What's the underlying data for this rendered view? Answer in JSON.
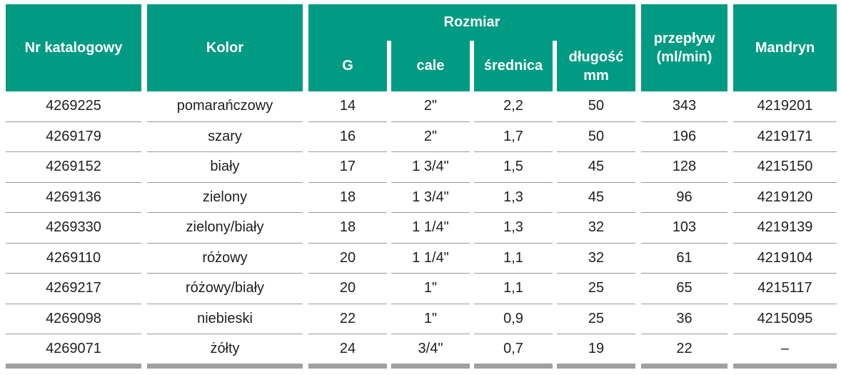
{
  "header": {
    "col_nr": "Nr katalogowy",
    "col_kolor": "Kolor",
    "group_rozmiar": "Rozmiar",
    "sub_g": "G",
    "sub_cale": "cale",
    "sub_srednica": "średnica",
    "sub_dlugosc_line1": "długość",
    "sub_dlugosc_line2": "mm",
    "col_przeplyw_line1": "przepływ",
    "col_przeplyw_line2": "(ml/min)",
    "col_mandryn": "Mandryn"
  },
  "rows": [
    {
      "nr": "4269225",
      "kolor": "pomarańczowy",
      "g": "14",
      "cale": "2\"",
      "srednica": "2,2",
      "dlugosc": "50",
      "przeplyw": "343",
      "mandryn": "4219201"
    },
    {
      "nr": "4269179",
      "kolor": "szary",
      "g": "16",
      "cale": "2\"",
      "srednica": "1,7",
      "dlugosc": "50",
      "przeplyw": "196",
      "mandryn": "4219171"
    },
    {
      "nr": "4269152",
      "kolor": "biały",
      "g": "17",
      "cale": "1 3/4\"",
      "srednica": "1,5",
      "dlugosc": "45",
      "przeplyw": "128",
      "mandryn": "4215150"
    },
    {
      "nr": "4269136",
      "kolor": "zielony",
      "g": "18",
      "cale": "1 3/4\"",
      "srednica": "1,3",
      "dlugosc": "45",
      "przeplyw": "96",
      "mandryn": "4219120"
    },
    {
      "nr": "4269330",
      "kolor": "zielony/biały",
      "g": "18",
      "cale": "1 1/4\"",
      "srednica": "1,3",
      "dlugosc": "32",
      "przeplyw": "103",
      "mandryn": "4219139"
    },
    {
      "nr": "4269110",
      "kolor": "różowy",
      "g": "20",
      "cale": "1 1/4\"",
      "srednica": "1,1",
      "dlugosc": "32",
      "przeplyw": "61",
      "mandryn": "4219104"
    },
    {
      "nr": "4269217",
      "kolor": "różowy/biały",
      "g": "20",
      "cale": "1\"",
      "srednica": "1,1",
      "dlugosc": "25",
      "przeplyw": "65",
      "mandryn": "4215117"
    },
    {
      "nr": "4269098",
      "kolor": "niebieski",
      "g": "22",
      "cale": "1\"",
      "srednica": "0,9",
      "dlugosc": "25",
      "przeplyw": "36",
      "mandryn": "4215095"
    },
    {
      "nr": "4269071",
      "kolor": "żółty",
      "g": "24",
      "cale": "3/4\"",
      "srednica": "0,7",
      "dlugosc": "19",
      "przeplyw": "22",
      "mandryn": "–"
    }
  ],
  "colors": {
    "header_bg": "#009b82",
    "header_text": "#ffffff",
    "body_text": "#1f1f1f",
    "row_line": "#999999",
    "bottom_bar": "#a0a0a0",
    "page_bg": "#ffffff"
  }
}
